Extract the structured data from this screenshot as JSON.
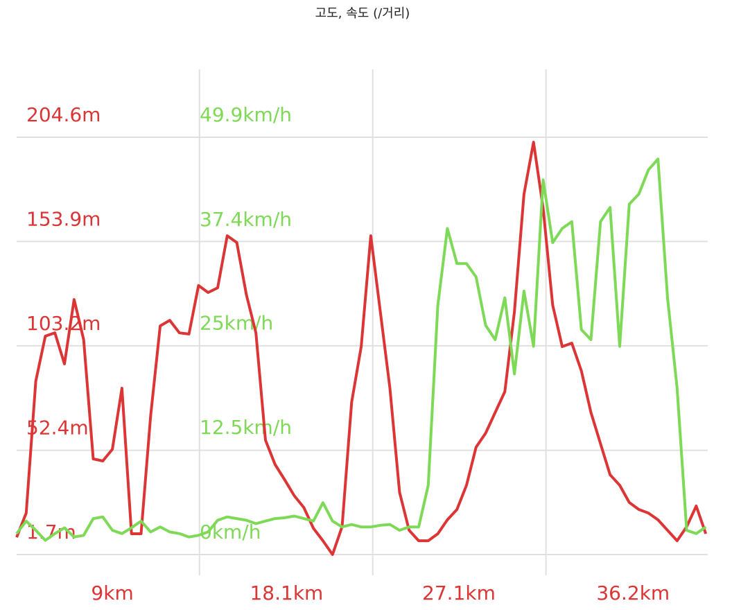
{
  "chart_data": {
    "type": "line",
    "title": "고도, 속도 (/거리)",
    "x": [
      4,
      4.5,
      5,
      5.5,
      6,
      6.5,
      7,
      7.5,
      8,
      8.5,
      9,
      9.5,
      10,
      10.5,
      11,
      11.5,
      12,
      12.5,
      13,
      13.5,
      14,
      14.5,
      15,
      15.5,
      16,
      16.5,
      17,
      17.5,
      18,
      18.5,
      19,
      19.5,
      20,
      20.5,
      21,
      21.5,
      22,
      22.5,
      23,
      23.5,
      24,
      24.5,
      25,
      25.5,
      26,
      26.5,
      27,
      27.5,
      28,
      28.5,
      29,
      29.5,
      30,
      30.5,
      31,
      31.5,
      32,
      32.5,
      33,
      33.5,
      34,
      34.5,
      35,
      35.5,
      36,
      36.5,
      37,
      37.5,
      38,
      38.5,
      39,
      39.5,
      40
    ],
    "series": [
      {
        "name": "고도",
        "color": "#dc3535",
        "values": [
          10.1,
          21.9,
          86.0,
          107.9,
          109.5,
          94.4,
          125.7,
          106.2,
          48.2,
          47.2,
          52.9,
          82.6,
          11.8,
          11.8,
          69.1,
          112.9,
          115.6,
          109.5,
          108.9,
          132.5,
          129.1,
          131.4,
          156.7,
          153.4,
          128.1,
          109.5,
          57.3,
          45.5,
          38.1,
          30.3,
          24.6,
          14.5,
          8.4,
          1.7,
          15.2,
          75.8,
          102.8,
          156.7,
          119.7,
          82.6,
          32.0,
          13.5,
          8.4,
          8.4,
          11.8,
          18.6,
          23.6,
          35.4,
          53.9,
          60.7,
          70.8,
          80.9,
          119.7,
          176.9,
          202.2,
          170.2,
          123.0,
          102.8,
          104.5,
          91.0,
          70.8,
          55.6,
          40.5,
          35.4,
          27.0,
          23.6,
          21.9,
          18.6,
          13.5,
          8.4,
          15.2,
          25.3,
          11.8
        ]
      },
      {
        "name": "속도",
        "color": "#7ed957",
        "axis": "y2",
        "values": [
          2.5,
          4.0,
          2.9,
          1.7,
          2.5,
          3.2,
          2.1,
          2.3,
          4.3,
          4.5,
          2.9,
          2.5,
          3.2,
          4.0,
          2.7,
          3.3,
          2.7,
          2.5,
          2.1,
          2.3,
          2.7,
          4.1,
          4.5,
          4.3,
          4.1,
          3.7,
          4.0,
          4.3,
          4.4,
          4.6,
          4.3,
          4.0,
          6.2,
          4.0,
          3.3,
          3.6,
          3.3,
          3.3,
          3.5,
          3.6,
          2.9,
          3.3,
          3.3,
          8.3,
          29.8,
          39.0,
          34.8,
          34.8,
          33.2,
          27.4,
          25.7,
          30.7,
          21.6,
          31.5,
          24.9,
          44.8,
          37.3,
          39.0,
          39.8,
          26.9,
          25.7,
          39.8,
          41.5,
          24.9,
          41.9,
          43.1,
          46.0,
          47.3,
          30.7,
          19.9,
          2.9,
          2.5,
          3.3
        ]
      }
    ],
    "xlim": [
      4,
      40.1
    ],
    "xticks": [
      {
        "value": 9,
        "label": "9km"
      },
      {
        "value": 18.1,
        "label": "18.1km"
      },
      {
        "value": 27.1,
        "label": "27.1km"
      },
      {
        "value": 36.2,
        "label": "36.2km"
      }
    ],
    "ylim": [
      1.7,
      204.6
    ],
    "yticks": [
      {
        "value": 1.7,
        "label": "1.7m"
      },
      {
        "value": 52.4,
        "label": "52.4m"
      },
      {
        "value": 103.2,
        "label": "103.2m"
      },
      {
        "value": 153.9,
        "label": "153.9m"
      },
      {
        "value": 204.6,
        "label": "204.6m"
      }
    ],
    "y2lim": [
      0,
      49.9
    ],
    "y2ticks": [
      {
        "value": 0,
        "label": "0km/h"
      },
      {
        "value": 12.5,
        "label": "12.5km/h"
      },
      {
        "value": 25,
        "label": "25km/h"
      },
      {
        "value": 37.4,
        "label": "37.4km/h"
      },
      {
        "value": 49.9,
        "label": "49.9km/h"
      }
    ],
    "grid": true
  }
}
